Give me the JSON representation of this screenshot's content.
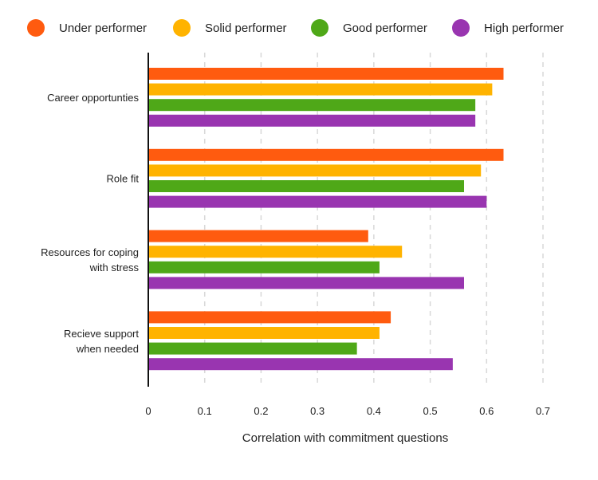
{
  "chart_data": {
    "type": "bar",
    "orientation": "horizontal",
    "categories": [
      "Career opportunties",
      "Role fit",
      "Resources for coping\nwith stress",
      "Recieve support\nwhen needed"
    ],
    "series": [
      {
        "name": "Under performer",
        "color": "#FF5B0F",
        "values": [
          0.63,
          0.63,
          0.39,
          0.43
        ]
      },
      {
        "name": "Solid performer",
        "color": "#FFB300",
        "values": [
          0.61,
          0.59,
          0.45,
          0.41
        ]
      },
      {
        "name": "Good performer",
        "color": "#4FA818",
        "values": [
          0.58,
          0.56,
          0.41,
          0.37
        ]
      },
      {
        "name": "High performer",
        "color": "#9935B0",
        "values": [
          0.58,
          0.6,
          0.56,
          0.54
        ]
      }
    ],
    "xlabel": "Correlation with commitment questions",
    "ylabel": "",
    "xlim": [
      0,
      0.7
    ],
    "xticks": [
      "0",
      "0.1",
      "0.2",
      "0.3",
      "0.4",
      "0.5",
      "0.6",
      "0.7"
    ],
    "grid": "vertical dashed",
    "legend": "top"
  }
}
